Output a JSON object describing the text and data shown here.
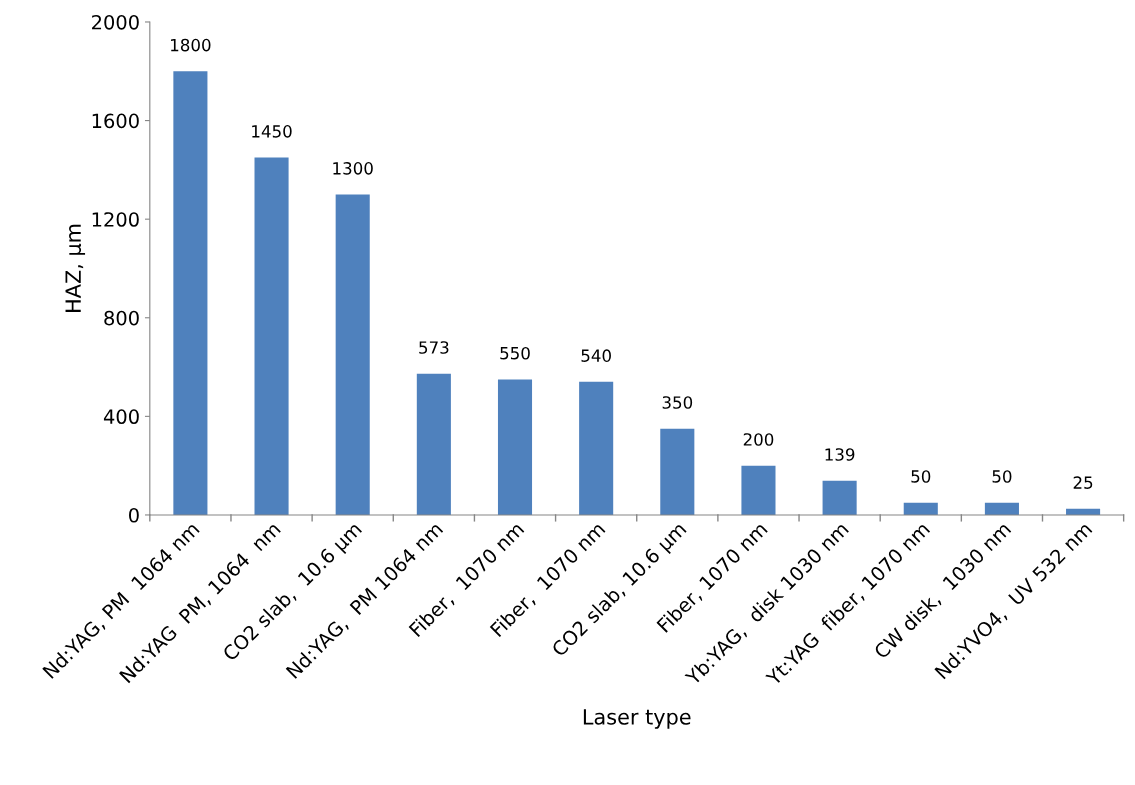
{
  "chart_data": {
    "type": "bar",
    "xlabel": "Laser type",
    "ylabel": "HAZ, µm",
    "categories": [
      "Nd:YAG, PM  1064 nm",
      "Nd:YAG  PM, 1064  nm",
      "CO2 slab,  10.6 µm",
      "Nd:YAG,  PM 1064 nm",
      "Fiber,  1070 nm",
      "Fiber,  1070 nm",
      "CO2 slab, 10.6 µm",
      "Fiber, 1070 nm",
      "Yb:YAG,  disk 1030 nm",
      "Yt:YAG  fiber, 1070 nm",
      "CW disk,  1030 nm",
      "Nd:YVO4,  UV 532 nm"
    ],
    "values": [
      1800,
      1450,
      1300,
      573,
      550,
      540,
      350,
      200,
      139,
      50,
      50,
      25
    ],
    "color": "#4f81bd",
    "data_labels": true,
    "ylim": [
      0,
      2000
    ],
    "yticks": [
      0,
      400,
      800,
      1200,
      1600,
      2000
    ],
    "grid": false
  }
}
